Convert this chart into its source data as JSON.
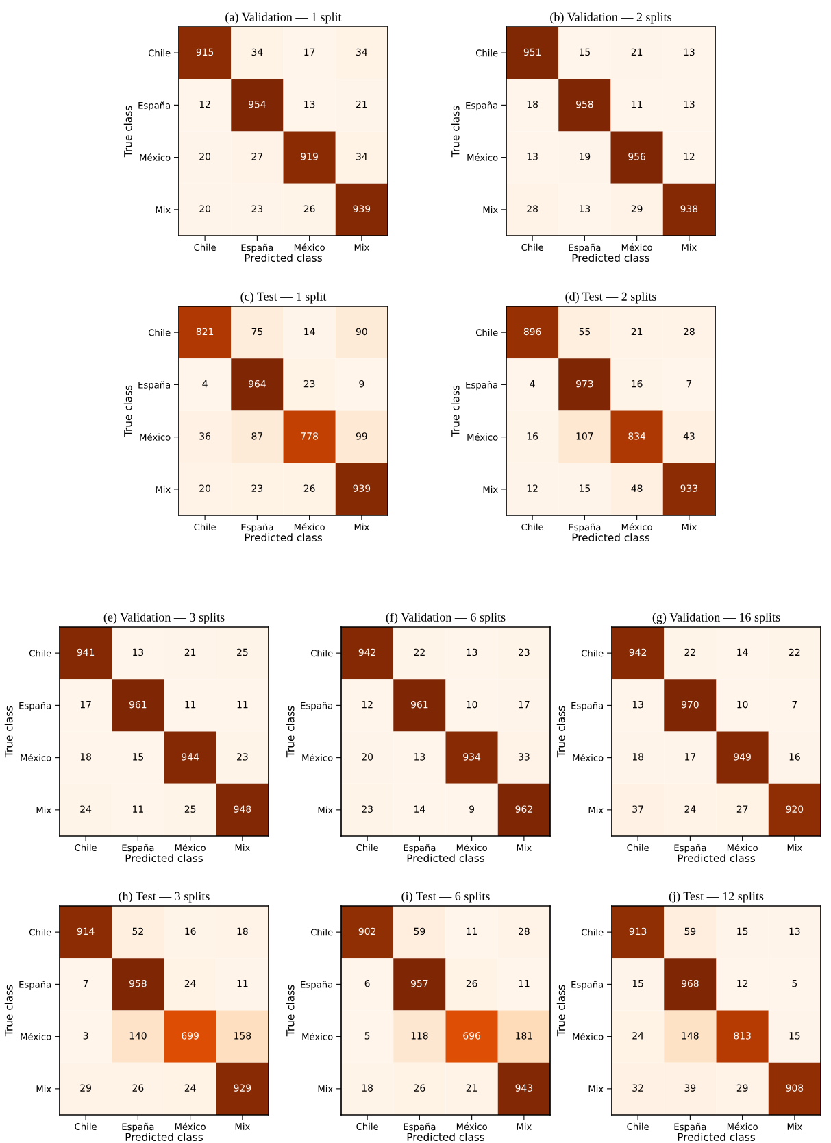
{
  "chart_data": [
    {
      "type": "heatmap",
      "title": "(a) Validation — 1 split",
      "xlabel": "Predicted class",
      "ylabel": "True class",
      "categories": [
        "Chile",
        "España",
        "México",
        "Mix"
      ],
      "y_categories": [
        "Chile",
        "España",
        "México",
        "Mix"
      ],
      "data_labels": true,
      "grid": false,
      "cells": [
        [
          915,
          34,
          17,
          34
        ],
        [
          12,
          954,
          13,
          21
        ],
        [
          20,
          27,
          919,
          34
        ],
        [
          20,
          23,
          26,
          939
        ]
      ]
    },
    {
      "type": "heatmap",
      "title": "(b) Validation — 2 splits",
      "xlabel": "Predicted class",
      "ylabel": "True class",
      "categories": [
        "Chile",
        "España",
        "México",
        "Mix"
      ],
      "y_categories": [
        "Chile",
        "España",
        "México",
        "Mix"
      ],
      "data_labels": true,
      "grid": false,
      "cells": [
        [
          951,
          15,
          21,
          13
        ],
        [
          18,
          958,
          11,
          13
        ],
        [
          13,
          19,
          956,
          12
        ],
        [
          28,
          13,
          29,
          938
        ]
      ]
    },
    {
      "type": "heatmap",
      "title": "(c) Test — 1 split",
      "xlabel": "Predicted class",
      "ylabel": "True class",
      "categories": [
        "Chile",
        "España",
        "México",
        "Mix"
      ],
      "y_categories": [
        "Chile",
        "España",
        "México",
        "Mix"
      ],
      "data_labels": true,
      "grid": false,
      "cells": [
        [
          821,
          75,
          14,
          90
        ],
        [
          4,
          964,
          23,
          9
        ],
        [
          36,
          87,
          778,
          99
        ],
        [
          20,
          23,
          26,
          939
        ]
      ]
    },
    {
      "type": "heatmap",
      "title": "(d) Test — 2 splits",
      "xlabel": "Predicted class",
      "ylabel": "True class",
      "categories": [
        "Chile",
        "España",
        "México",
        "Mix"
      ],
      "y_categories": [
        "Chile",
        "España",
        "México",
        "Mix"
      ],
      "data_labels": true,
      "grid": false,
      "cells": [
        [
          896,
          55,
          21,
          28
        ],
        [
          4,
          973,
          16,
          7
        ],
        [
          16,
          107,
          834,
          43
        ],
        [
          12,
          15,
          48,
          933
        ]
      ]
    },
    {
      "type": "heatmap",
      "title": "(e) Validation — 3 splits",
      "xlabel": "Predicted class",
      "ylabel": "True class",
      "categories": [
        "Chile",
        "España",
        "México",
        "Mix"
      ],
      "y_categories": [
        "Chile",
        "España",
        "México",
        "Mix"
      ],
      "data_labels": true,
      "grid": false,
      "cells": [
        [
          941,
          13,
          21,
          25
        ],
        [
          17,
          961,
          11,
          11
        ],
        [
          18,
          15,
          944,
          23
        ],
        [
          24,
          11,
          25,
          948
        ]
      ]
    },
    {
      "type": "heatmap",
      "title": "(f) Validation — 6 splits",
      "xlabel": "Predicted class",
      "ylabel": "True class",
      "categories": [
        "Chile",
        "España",
        "México",
        "Mix"
      ],
      "y_categories": [
        "Chile",
        "España",
        "México",
        "Mix"
      ],
      "data_labels": true,
      "grid": false,
      "cells": [
        [
          942,
          22,
          13,
          23
        ],
        [
          12,
          961,
          10,
          17
        ],
        [
          20,
          13,
          934,
          33
        ],
        [
          23,
          14,
          9,
          962
        ]
      ]
    },
    {
      "type": "heatmap",
      "title": "(g) Validation — 16 splits",
      "xlabel": "Predicted class",
      "ylabel": "True class",
      "categories": [
        "Chile",
        "España",
        "México",
        "Mix"
      ],
      "y_categories": [
        "Chile",
        "España",
        "México",
        "Mix"
      ],
      "data_labels": true,
      "grid": false,
      "cells": [
        [
          942,
          22,
          14,
          22
        ],
        [
          13,
          970,
          10,
          7
        ],
        [
          18,
          17,
          949,
          16
        ],
        [
          37,
          24,
          27,
          920
        ]
      ]
    },
    {
      "type": "heatmap",
      "title": "(h) Test — 3 splits",
      "xlabel": "Predicted class",
      "ylabel": "True class",
      "categories": [
        "Chile",
        "España",
        "México",
        "Mix"
      ],
      "y_categories": [
        "Chile",
        "España",
        "México",
        "Mix"
      ],
      "data_labels": true,
      "grid": false,
      "cells": [
        [
          914,
          52,
          16,
          18
        ],
        [
          7,
          958,
          24,
          11
        ],
        [
          3,
          140,
          699,
          158
        ],
        [
          29,
          26,
          24,
          929
        ]
      ]
    },
    {
      "type": "heatmap",
      "title": "(i) Test — 6 splits",
      "xlabel": "Predicted class",
      "ylabel": "True class",
      "categories": [
        "Chile",
        "España",
        "México",
        "Mix"
      ],
      "y_categories": [
        "Chile",
        "España",
        "México",
        "Mix"
      ],
      "data_labels": true,
      "grid": false,
      "cells": [
        [
          902,
          59,
          11,
          28
        ],
        [
          6,
          957,
          26,
          11
        ],
        [
          5,
          118,
          696,
          181
        ],
        [
          18,
          26,
          21,
          943
        ]
      ]
    },
    {
      "type": "heatmap",
      "title": "(j) Test — 12 splits",
      "xlabel": "Predicted class",
      "ylabel": "True class",
      "categories": [
        "Chile",
        "España",
        "México",
        "Mix"
      ],
      "y_categories": [
        "Chile",
        "España",
        "México",
        "Mix"
      ],
      "data_labels": true,
      "grid": false,
      "cells": [
        [
          913,
          59,
          15,
          13
        ],
        [
          15,
          968,
          12,
          5
        ],
        [
          24,
          148,
          813,
          15
        ],
        [
          32,
          39,
          29,
          908
        ]
      ]
    }
  ]
}
